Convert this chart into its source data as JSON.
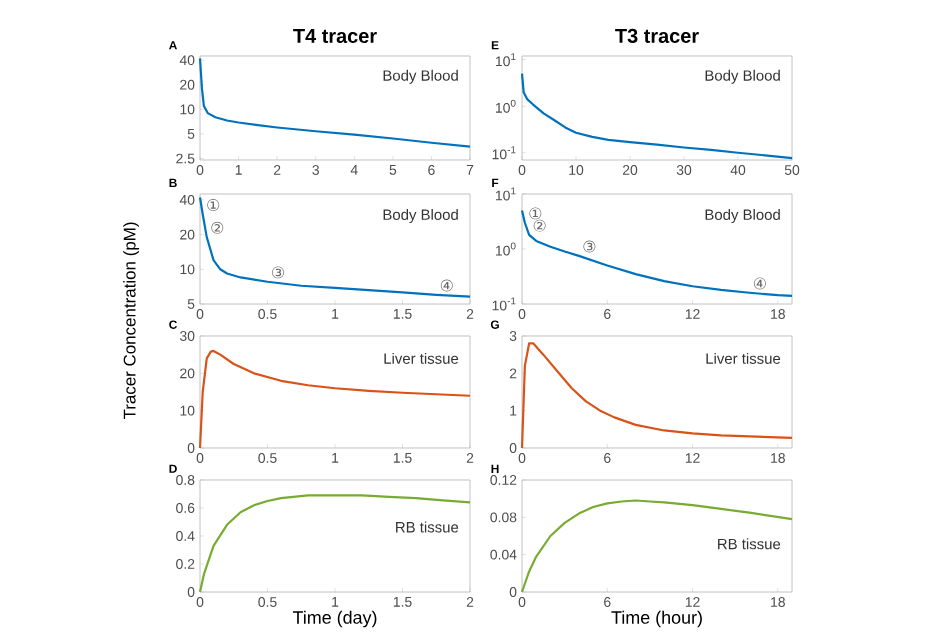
{
  "chart_data": [
    {
      "type": "line",
      "title": "T4 tracer",
      "log": "y",
      "marker": "none",
      "x": [
        0,
        0.02,
        0.05,
        0.1,
        0.2,
        0.4,
        0.7,
        1,
        1.5,
        2,
        3,
        4,
        5,
        6,
        7
      ],
      "series": [
        {
          "color": "#0072bd",
          "values": [
            42,
            30,
            18,
            11,
            9,
            8,
            7.3,
            6.9,
            6.4,
            6,
            5.4,
            4.9,
            4.4,
            3.9,
            3.5
          ]
        }
      ],
      "xlim": [
        0,
        7
      ],
      "ylim": [
        2.4,
        45
      ],
      "xticks": [
        0,
        1,
        2,
        3,
        4,
        5,
        6,
        7
      ],
      "yticks": [
        2.5,
        5,
        10,
        20,
        40
      ],
      "annotations": [
        "A",
        "Body Blood"
      ]
    },
    {
      "type": "line",
      "ylabel": "Tracer Concentration (pM)",
      "log": "y",
      "marker": "none",
      "x": [
        0,
        0.02,
        0.05,
        0.1,
        0.15,
        0.2,
        0.3,
        0.5,
        0.75,
        1,
        1.25,
        1.5,
        1.75,
        2
      ],
      "series": [
        {
          "color": "#0072bd",
          "values": [
            42,
            30,
            19,
            12,
            10,
            9.2,
            8.5,
            7.8,
            7.2,
            6.9,
            6.6,
            6.3,
            6,
            5.8
          ]
        }
      ],
      "xlim": [
        0,
        2
      ],
      "ylim": [
        5,
        45
      ],
      "xticks": [
        0,
        0.5,
        1,
        1.5,
        2
      ],
      "yticks": [
        5,
        10,
        20,
        40
      ],
      "annotations": [
        "B",
        "Body Blood",
        {
          "text": "①",
          "x": 0.02,
          "y": 30
        },
        {
          "text": "②",
          "x": 0.05,
          "y": 19
        },
        {
          "text": "③",
          "x": 0.5,
          "y": 7.8
        },
        {
          "text": "④",
          "x": 1.75,
          "y": 6
        }
      ]
    },
    {
      "type": "line",
      "marker": "none",
      "x": [
        0,
        0.02,
        0.05,
        0.08,
        0.1,
        0.15,
        0.25,
        0.4,
        0.6,
        0.8,
        1,
        1.25,
        1.5,
        1.75,
        2
      ],
      "series": [
        {
          "color": "#d95319",
          "values": [
            0,
            15,
            24,
            25.8,
            26,
            25,
            22.5,
            20,
            18,
            16.8,
            16,
            15.3,
            14.8,
            14.4,
            14
          ]
        }
      ],
      "xlim": [
        0,
        2
      ],
      "ylim": [
        0,
        30
      ],
      "xticks": [
        0,
        0.5,
        1,
        1.5,
        2
      ],
      "yticks": [
        0,
        10,
        20,
        30
      ],
      "annotations": [
        "C",
        "Liver tissue"
      ]
    },
    {
      "type": "line",
      "xlabel": "Time (day)",
      "marker": "none",
      "x": [
        0,
        0.03,
        0.1,
        0.2,
        0.3,
        0.4,
        0.5,
        0.6,
        0.8,
        1,
        1.2,
        1.4,
        1.6,
        1.8,
        2
      ],
      "series": [
        {
          "color": "#77ac30",
          "values": [
            0,
            0.13,
            0.33,
            0.48,
            0.57,
            0.62,
            0.65,
            0.67,
            0.69,
            0.69,
            0.69,
            0.68,
            0.67,
            0.655,
            0.64
          ]
        }
      ],
      "xlim": [
        0,
        2
      ],
      "ylim": [
        0,
        0.8
      ],
      "xticks": [
        0,
        0.5,
        1,
        1.5,
        2
      ],
      "yticks": [
        0,
        0.2,
        0.4,
        0.6,
        0.8
      ],
      "annotations": [
        "D",
        "RB tissue"
      ]
    },
    {
      "type": "line",
      "title": "T3 tracer",
      "log": "y",
      "marker": "none",
      "x": [
        0,
        0.3,
        1,
        2,
        4,
        6,
        8,
        10,
        13,
        16,
        20,
        25,
        30,
        35,
        40,
        45,
        50
      ],
      "series": [
        {
          "color": "#0072bd",
          "values": [
            5,
            2,
            1.4,
            1.1,
            0.7,
            0.5,
            0.35,
            0.27,
            0.22,
            0.19,
            0.17,
            0.15,
            0.13,
            0.115,
            0.1,
            0.088,
            0.077
          ]
        }
      ],
      "xlim": [
        0,
        50
      ],
      "ylim": [
        0.07,
        12
      ],
      "xticks": [
        0,
        10,
        20,
        30,
        40,
        50
      ],
      "yticks": [
        {
          "value": 0.1,
          "label": "10$^{-1}$"
        },
        {
          "value": 1,
          "label": "10$^{0}$"
        },
        {
          "value": 10,
          "label": "10$^{1}$"
        }
      ],
      "annotations": [
        "E",
        "Body Blood"
      ]
    },
    {
      "type": "line",
      "log": "y",
      "marker": "none",
      "x": [
        0,
        0.2,
        0.5,
        1,
        2,
        3,
        4,
        6,
        8,
        10,
        12,
        14,
        16,
        18,
        19
      ],
      "series": [
        {
          "color": "#0072bd",
          "values": [
            5,
            3,
            1.8,
            1.4,
            1.1,
            0.9,
            0.75,
            0.5,
            0.35,
            0.26,
            0.21,
            0.18,
            0.16,
            0.145,
            0.14
          ]
        }
      ],
      "xlim": [
        0,
        19
      ],
      "ylim": [
        0.1,
        10
      ],
      "xticks": [
        0,
        6,
        12,
        18
      ],
      "yticks": [
        {
          "value": 0.1,
          "label": "10$^{-1}$"
        },
        {
          "value": 1,
          "label": "10$^{0}$"
        },
        {
          "value": 10,
          "label": "10$^{1}$"
        }
      ],
      "annotations": [
        "F",
        "Body Blood",
        {
          "text": "①",
          "x": 0.2,
          "y": 3
        },
        {
          "text": "②",
          "x": 0.5,
          "y": 1.8
        },
        {
          "text": "③",
          "x": 4,
          "y": 0.75
        },
        {
          "text": "④",
          "x": 16,
          "y": 0.16
        }
      ]
    },
    {
      "type": "line",
      "marker": "none",
      "x": [
        0,
        0.2,
        0.5,
        0.8,
        1.5,
        2.5,
        3.5,
        4.5,
        5.5,
        6.5,
        8,
        10,
        12,
        14,
        16,
        19
      ],
      "series": [
        {
          "color": "#d95319",
          "values": [
            0,
            2.2,
            2.8,
            2.8,
            2.5,
            2.05,
            1.6,
            1.25,
            1,
            0.82,
            0.62,
            0.47,
            0.39,
            0.34,
            0.31,
            0.27
          ]
        }
      ],
      "xlim": [
        0,
        19
      ],
      "ylim": [
        0,
        3
      ],
      "xticks": [
        0,
        6,
        12,
        18
      ],
      "yticks": [
        0,
        1,
        2,
        3
      ],
      "annotations": [
        "G",
        "Liver tissue"
      ]
    },
    {
      "type": "line",
      "xlabel": "Time (hour)",
      "marker": "none",
      "x": [
        0,
        0.5,
        1,
        2,
        3,
        4,
        5,
        6,
        7,
        8,
        9,
        10,
        12,
        14,
        16,
        19
      ],
      "series": [
        {
          "color": "#77ac30",
          "values": [
            0,
            0.022,
            0.038,
            0.06,
            0.074,
            0.084,
            0.091,
            0.095,
            0.097,
            0.098,
            0.097,
            0.096,
            0.093,
            0.089,
            0.085,
            0.078
          ]
        }
      ],
      "xlim": [
        0,
        19
      ],
      "ylim": [
        0,
        0.12
      ],
      "xticks": [
        0,
        6,
        12,
        18
      ],
      "yticks": [
        0,
        0.04,
        0.08,
        0.12
      ],
      "annotations": [
        "H",
        "RB tissue"
      ]
    }
  ]
}
